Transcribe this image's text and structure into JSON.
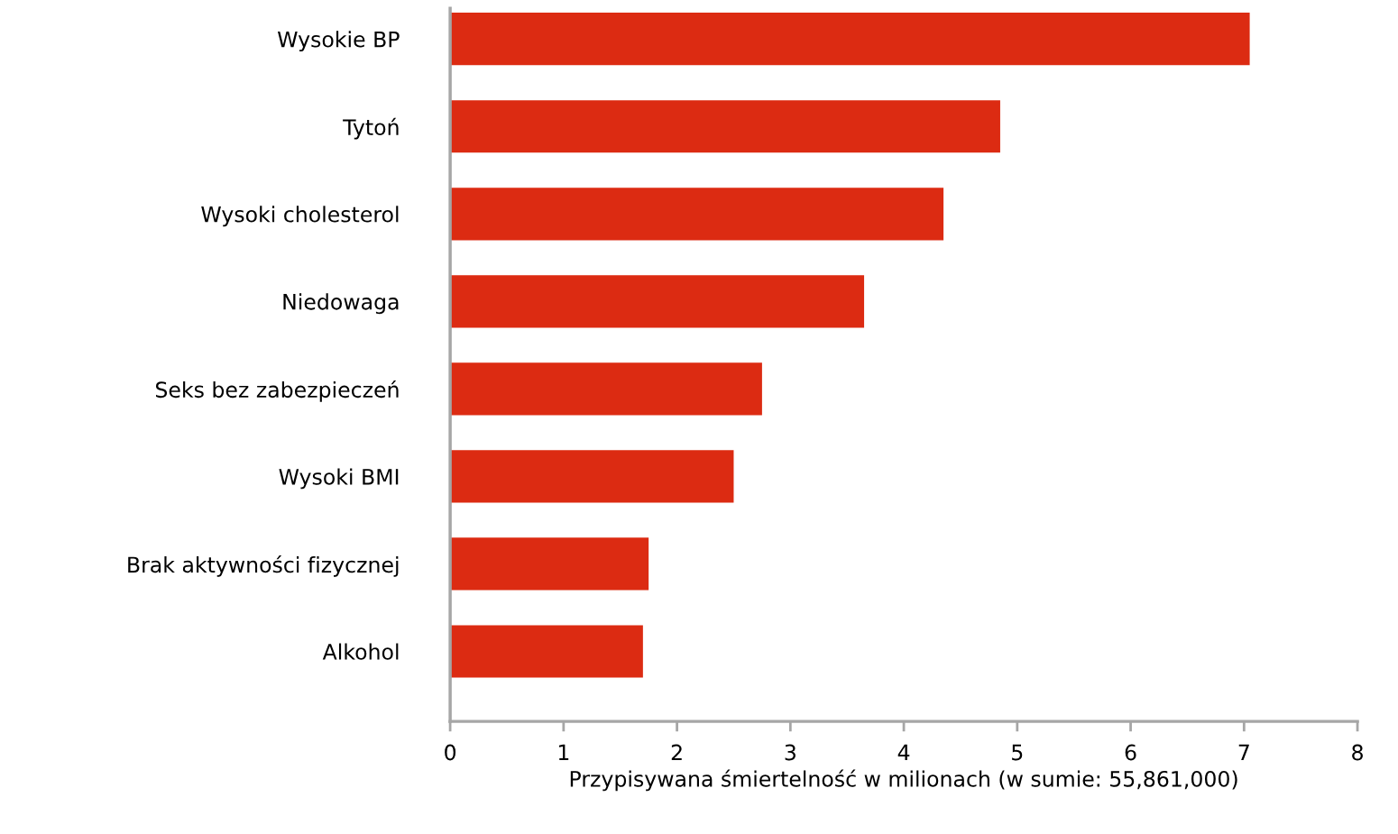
{
  "chart_data": {
    "type": "bar",
    "orientation": "horizontal",
    "categories": [
      "Wysokie BP",
      "Tytoń",
      "Wysoki cholesterol",
      "Niedowaga",
      "Seks bez zabezpieczeń",
      "Wysoki BMI",
      "Brak aktywności fizycznej",
      "Alkohol"
    ],
    "values": [
      7.05,
      4.85,
      4.35,
      3.65,
      2.75,
      2.5,
      1.75,
      1.7
    ],
    "color": "#dc2b12",
    "xlabel": "Przypisywana śmiertelność w milionach (w sumie: 55,861,000)",
    "xlim": [
      0,
      8
    ],
    "xticks": [
      0,
      1,
      2,
      3,
      4,
      5,
      6,
      7,
      8
    ],
    "grid": false,
    "legend": false
  }
}
